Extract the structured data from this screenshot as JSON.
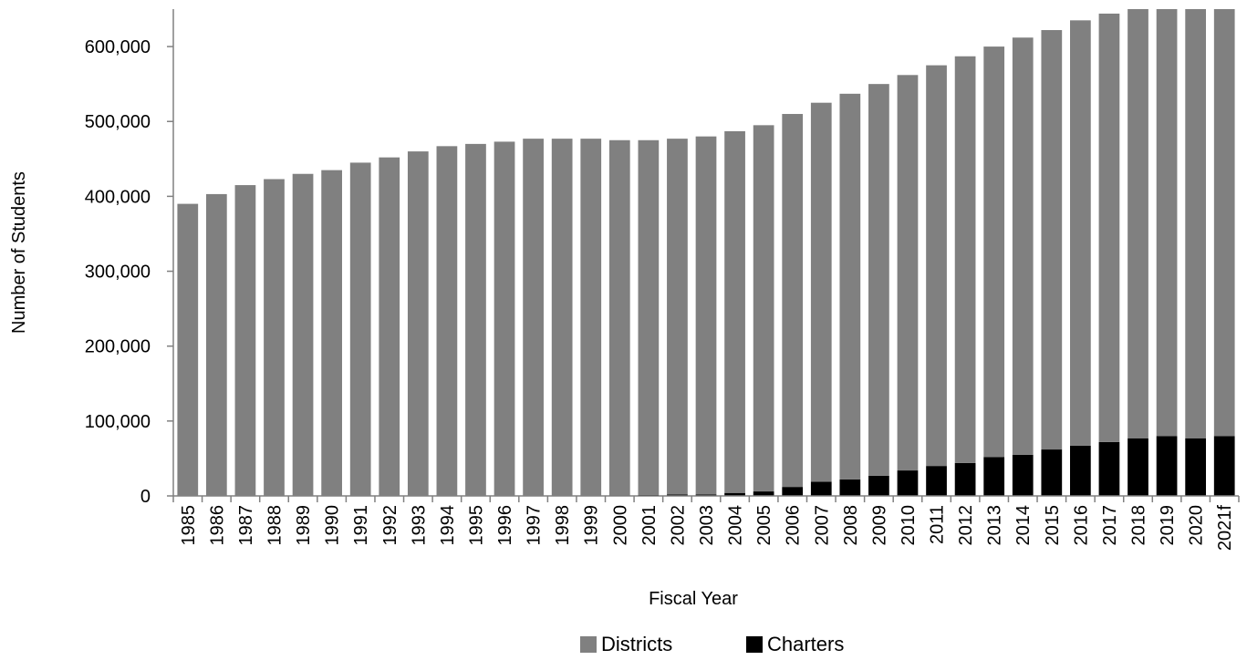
{
  "chart_data": {
    "type": "bar",
    "stacked": true,
    "xlabel": "Fiscal Year",
    "ylabel": "Number of Students",
    "ylim": [
      0,
      650000
    ],
    "yticks": [
      0,
      100000,
      200000,
      300000,
      400000,
      500000,
      600000
    ],
    "ytick_labels": [
      "0",
      "100,000",
      "200,000",
      "300,000",
      "400,000",
      "500,000",
      "600,000"
    ],
    "grid": false,
    "legend_position": "bottom",
    "categories": [
      "1985",
      "1986",
      "1987",
      "1988",
      "1989",
      "1990",
      "1991",
      "1992",
      "1993",
      "1994",
      "1995",
      "1996",
      "1997",
      "1998",
      "1999",
      "2000",
      "2001",
      "2002",
      "2003",
      "2004",
      "2005",
      "2006",
      "2007",
      "2008",
      "2009",
      "2010",
      "2011",
      "2012",
      "2013",
      "2014",
      "2015",
      "2016",
      "2017",
      "2018",
      "2019",
      "2020",
      "2021f"
    ],
    "series": [
      {
        "name": "Charters",
        "color": "#000000",
        "values": [
          0,
          0,
          0,
          0,
          0,
          0,
          0,
          0,
          0,
          0,
          0,
          0,
          0,
          0,
          0,
          1000,
          1500,
          2000,
          2000,
          4000,
          6000,
          12000,
          19000,
          22000,
          27000,
          34000,
          40000,
          44000,
          52000,
          55000,
          62000,
          67000,
          72000,
          77000,
          80000,
          77000,
          80000
        ]
      },
      {
        "name": "Districts",
        "color": "#808080",
        "values": [
          390000,
          403000,
          415000,
          423000,
          430000,
          435000,
          445000,
          452000,
          460000,
          467000,
          470000,
          473000,
          477000,
          477000,
          477000,
          474000,
          473500,
          475000,
          478000,
          483000,
          489000,
          498000,
          506000,
          515000,
          523000,
          528000,
          535000,
          543000,
          548000,
          557000,
          560000,
          568000,
          572000,
          573000,
          570000,
          573000,
          570000
        ]
      }
    ]
  }
}
